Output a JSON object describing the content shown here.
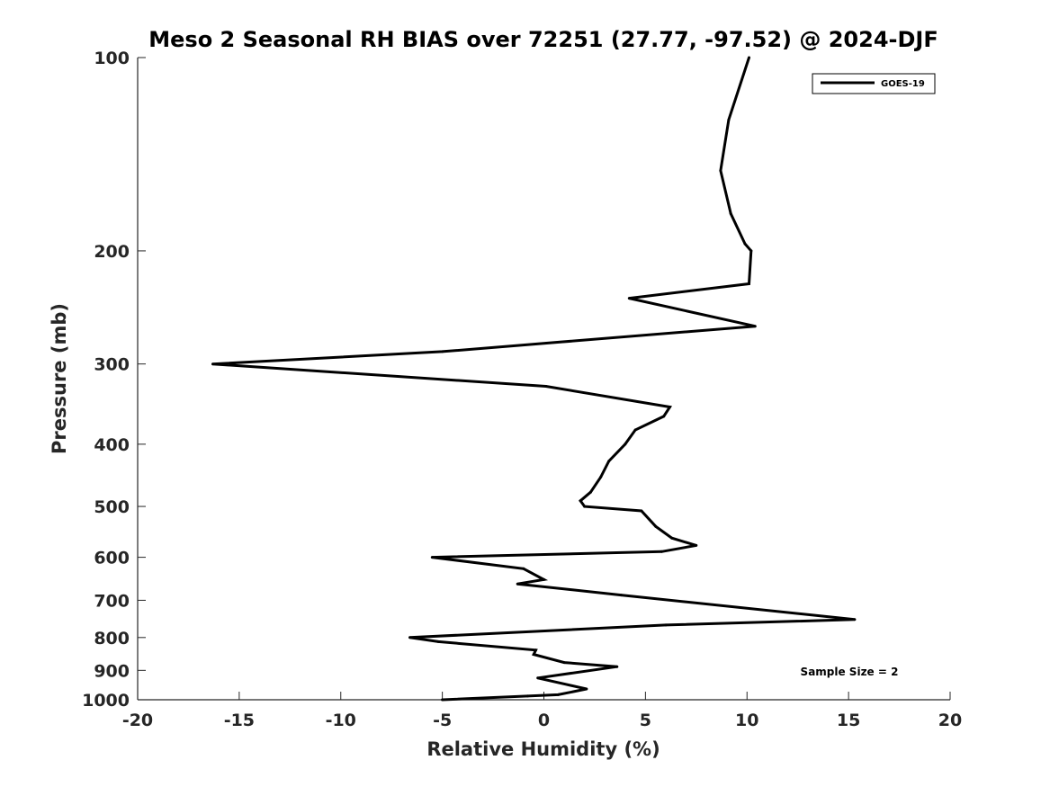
{
  "chart_data": {
    "type": "line",
    "title": "Meso 2 Seasonal RH BIAS over 72251 (27.77, -97.52) @ 2024-DJF",
    "xlabel": "Relative Humidity (%)",
    "ylabel": "Pressure (mb)",
    "xlim": [
      -20,
      20
    ],
    "ylim": [
      100,
      1000
    ],
    "y_scale": "log",
    "y_direction": "reversed",
    "x_ticks": [
      -20,
      -15,
      -10,
      -5,
      0,
      5,
      10,
      15,
      20
    ],
    "x_tick_labels": [
      "-20",
      "-15",
      "-10",
      "-5",
      "0",
      "5",
      "10",
      "15",
      "20"
    ],
    "y_ticks": [
      100,
      200,
      300,
      400,
      500,
      600,
      700,
      800,
      900,
      1000
    ],
    "y_tick_labels": [
      "100",
      "200",
      "300",
      "400",
      "500",
      "600",
      "700",
      "800",
      "900",
      "1000"
    ],
    "grid": false,
    "legend_position": "top-right",
    "annotation": "Sample Size = 2",
    "series": [
      {
        "name": "GOES-19",
        "color": "#000000",
        "points": [
          {
            "x": 10.1,
            "p": 100
          },
          {
            "x": 9.1,
            "p": 125
          },
          {
            "x": 8.7,
            "p": 150
          },
          {
            "x": 9.2,
            "p": 175
          },
          {
            "x": 9.9,
            "p": 195
          },
          {
            "x": 10.2,
            "p": 200
          },
          {
            "x": 10.1,
            "p": 225
          },
          {
            "x": 4.2,
            "p": 237
          },
          {
            "x": 10.4,
            "p": 262
          },
          {
            "x": -5.0,
            "p": 287
          },
          {
            "x": -16.3,
            "p": 300
          },
          {
            "x": 0.1,
            "p": 325
          },
          {
            "x": 6.2,
            "p": 350
          },
          {
            "x": 5.9,
            "p": 362
          },
          {
            "x": 4.5,
            "p": 380
          },
          {
            "x": 4.0,
            "p": 400
          },
          {
            "x": 3.2,
            "p": 425
          },
          {
            "x": 2.8,
            "p": 450
          },
          {
            "x": 2.3,
            "p": 475
          },
          {
            "x": 1.8,
            "p": 490
          },
          {
            "x": 2.0,
            "p": 500
          },
          {
            "x": 4.8,
            "p": 508
          },
          {
            "x": 5.5,
            "p": 537
          },
          {
            "x": 6.3,
            "p": 560
          },
          {
            "x": 7.5,
            "p": 575
          },
          {
            "x": 5.8,
            "p": 588
          },
          {
            "x": -5.5,
            "p": 600
          },
          {
            "x": -1.0,
            "p": 625
          },
          {
            "x": 0.0,
            "p": 650
          },
          {
            "x": -1.3,
            "p": 660
          },
          {
            "x": 3.8,
            "p": 687
          },
          {
            "x": 15.3,
            "p": 750
          },
          {
            "x": 6.0,
            "p": 765
          },
          {
            "x": -6.6,
            "p": 800
          },
          {
            "x": -5.2,
            "p": 812
          },
          {
            "x": -0.4,
            "p": 837
          },
          {
            "x": -0.5,
            "p": 850
          },
          {
            "x": 1.0,
            "p": 875
          },
          {
            "x": 3.6,
            "p": 888
          },
          {
            "x": -0.3,
            "p": 925
          },
          {
            "x": 2.1,
            "p": 962
          },
          {
            "x": 0.7,
            "p": 982
          },
          {
            "x": -0.8,
            "p": 987
          },
          {
            "x": -5.0,
            "p": 1000
          }
        ]
      }
    ]
  }
}
